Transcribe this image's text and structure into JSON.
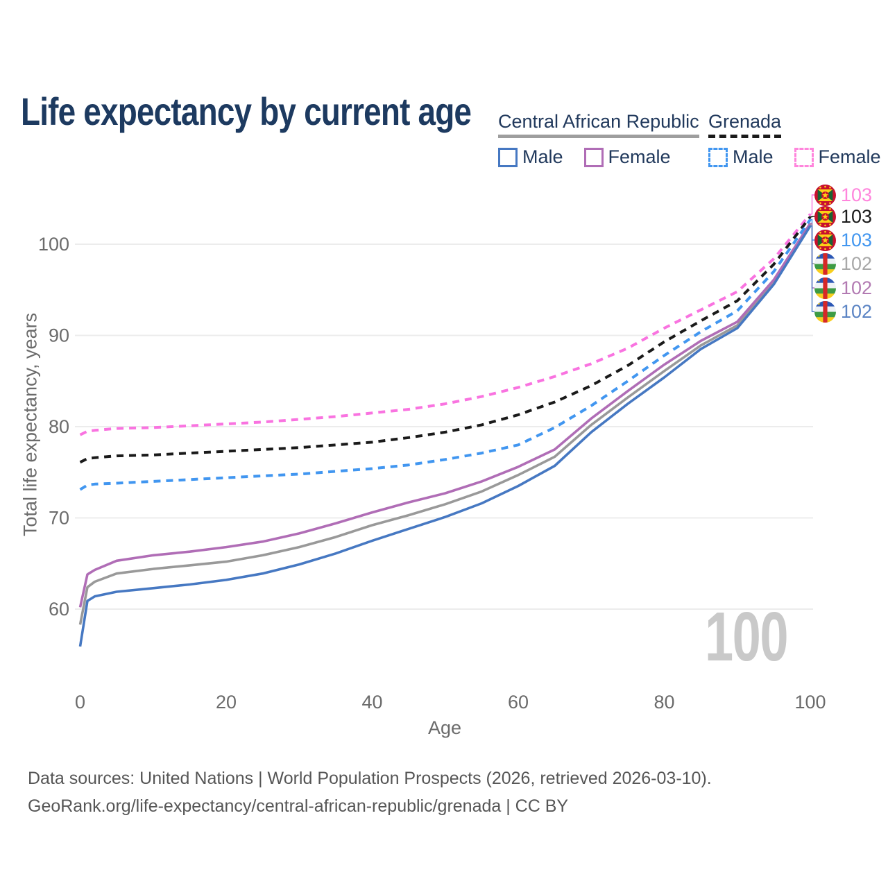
{
  "title": "Life expectancy by current age",
  "legend": {
    "group1": {
      "label": "Central African Republic",
      "male": "Male",
      "female": "Female"
    },
    "group2": {
      "label": "Grenada",
      "male": "Male",
      "female": "Female"
    }
  },
  "watermark": "100",
  "footer": {
    "line1": "Data sources: United Nations | World Population Prospects (2026, retrieved 2026-03-10).",
    "line2": "GeoRank.org/life-expectancy/central-african-republic/grenada | CC BY"
  },
  "colors": {
    "title_text": "#1d3a60",
    "axis_text": "#6b6b6b",
    "gridline": "#ececec",
    "watermark": "#c9c9c9",
    "car_underline": "#9e9e9e",
    "grenada_underline": "#1a1a1a"
  },
  "chart_data": {
    "type": "line",
    "xlabel": "Age",
    "ylabel": "Total life expectancy, years",
    "xlim": [
      0,
      100
    ],
    "xticks": [
      0,
      20,
      40,
      60,
      80,
      100
    ],
    "yticks": [
      60,
      70,
      80,
      90,
      100
    ],
    "grid": "horizontal-only",
    "legend_position": "top-right",
    "x": [
      0,
      1,
      2,
      5,
      10,
      15,
      20,
      25,
      30,
      35,
      40,
      45,
      50,
      55,
      60,
      65,
      70,
      75,
      80,
      85,
      90,
      95,
      100
    ],
    "series": [
      {
        "id": "grenada-female",
        "name": "Grenada Female",
        "country": "Grenada",
        "sex": "Female",
        "color": "#f973e0",
        "label_color": "#ff85dc",
        "dashed": true,
        "flag": "grenada-flag",
        "end_label": "103",
        "values": [
          79.1,
          79.5,
          79.6,
          79.8,
          79.9,
          80.1,
          80.3,
          80.5,
          80.8,
          81.1,
          81.5,
          81.9,
          82.5,
          83.3,
          84.3,
          85.5,
          86.9,
          88.6,
          90.8,
          92.8,
          94.8,
          98.4,
          103.3
        ]
      },
      {
        "id": "grenada-total",
        "name": "Grenada",
        "country": "Grenada",
        "sex": "Both",
        "color": "#1a1a1a",
        "label_color": "#1a1a1a",
        "dashed": true,
        "flag": "grenada-flag",
        "end_label": "103",
        "values": [
          76.1,
          76.5,
          76.6,
          76.8,
          76.9,
          77.1,
          77.3,
          77.5,
          77.7,
          78.0,
          78.3,
          78.8,
          79.4,
          80.2,
          81.3,
          82.7,
          84.5,
          86.7,
          89.3,
          91.6,
          93.8,
          97.8,
          103.0
        ]
      },
      {
        "id": "grenada-male",
        "name": "Grenada Male",
        "country": "Grenada",
        "sex": "Male",
        "color": "#4196f0",
        "label_color": "#4196f0",
        "dashed": true,
        "flag": "grenada-flag",
        "end_label": "103",
        "values": [
          73.1,
          73.6,
          73.7,
          73.8,
          74.0,
          74.2,
          74.4,
          74.6,
          74.8,
          75.1,
          75.4,
          75.8,
          76.4,
          77.1,
          78.0,
          79.9,
          82.3,
          85.0,
          87.8,
          90.4,
          92.7,
          97.0,
          102.7
        ]
      },
      {
        "id": "car-total",
        "name": "Central African Republic",
        "country": "Central African Republic",
        "sex": "Both",
        "color": "#999999",
        "label_color": "#a8a8a8",
        "dashed": false,
        "flag": "car-flag",
        "end_label": "102",
        "values": [
          58.3,
          62.4,
          63.0,
          63.9,
          64.4,
          64.8,
          65.2,
          65.9,
          66.8,
          67.9,
          69.2,
          70.3,
          71.5,
          72.9,
          74.7,
          76.7,
          80.2,
          83.2,
          86.1,
          88.9,
          91.1,
          95.9,
          102.2
        ]
      },
      {
        "id": "car-female",
        "name": "Central African Republic Female",
        "country": "Central African Republic",
        "sex": "Female",
        "color": "#b06db6",
        "label_color": "#b27ab2",
        "dashed": false,
        "flag": "car-flag",
        "end_label": "102",
        "values": [
          60.2,
          63.8,
          64.3,
          65.3,
          65.9,
          66.3,
          66.8,
          67.4,
          68.3,
          69.4,
          70.6,
          71.7,
          72.7,
          74.0,
          75.6,
          77.5,
          80.9,
          83.9,
          86.8,
          89.4,
          91.5,
          96.1,
          102.3
        ]
      },
      {
        "id": "car-male",
        "name": "Central African Republic Male",
        "country": "Central African Republic",
        "sex": "Male",
        "color": "#4678c2",
        "label_color": "#5b84c4",
        "dashed": false,
        "flag": "car-flag",
        "end_label": "102",
        "values": [
          55.9,
          60.9,
          61.4,
          61.9,
          62.3,
          62.7,
          63.2,
          63.9,
          64.9,
          66.1,
          67.5,
          68.8,
          70.1,
          71.6,
          73.5,
          75.7,
          79.4,
          82.5,
          85.4,
          88.5,
          90.8,
          95.6,
          102.0
        ]
      }
    ]
  }
}
